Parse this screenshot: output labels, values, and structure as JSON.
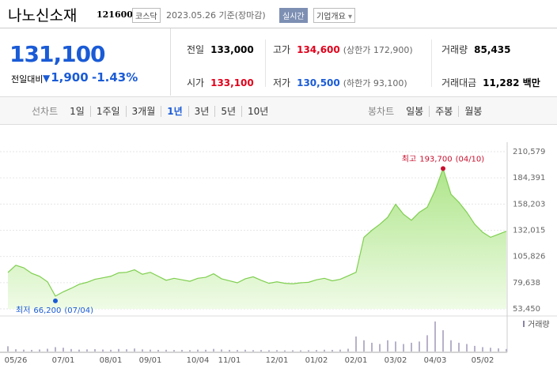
{
  "header": {
    "name": "나노신소재",
    "code": "121600",
    "market": "코스닥",
    "date": "2023.05.26 기준(장마감)",
    "status": "실시간",
    "button": "기업개요"
  },
  "quote": {
    "price": "131,100",
    "change_label": "전일대비",
    "change": "1,900",
    "change_pct": "-1.43%",
    "color": "#1a5bd6"
  },
  "stats": [
    [
      {
        "label": "전일",
        "value": "133,000"
      },
      {
        "label": "고가",
        "value": "134,600",
        "color": "#e0001b",
        "extra": "(상한가 172,900)"
      },
      {
        "label": "거래량",
        "value": "85,435"
      }
    ],
    [
      {
        "label": "시가",
        "value": "133,100",
        "color": "#e0001b"
      },
      {
        "label": "저가",
        "value": "130,500",
        "color": "#1a5bd6",
        "extra": "(하한가 93,100)"
      },
      {
        "label": "거래대금",
        "value": "11,282 백만"
      }
    ]
  ],
  "tabs": {
    "line_label": "선차트",
    "line_periods": [
      "1일",
      "1주일",
      "3개월",
      "1년",
      "3년",
      "5년",
      "10년"
    ],
    "selected": "1년",
    "candle_label": "봉차트",
    "candle_periods": [
      "일봉",
      "주봉",
      "월봉"
    ]
  },
  "chart_data": {
    "type": "area",
    "color": "#7fcf4f",
    "fill": "#c9f0ad",
    "categories": [
      null,
      "05/26",
      null,
      null,
      null,
      null,
      null,
      "07/01",
      null,
      null,
      null,
      null,
      null,
      "08/01",
      null,
      null,
      null,
      null,
      "09/01",
      null,
      null,
      null,
      null,
      null,
      "10/04",
      null,
      null,
      null,
      "11/01",
      null,
      null,
      null,
      null,
      null,
      "12/01",
      null,
      null,
      null,
      null,
      "01/02",
      null,
      null,
      null,
      null,
      "02/01",
      null,
      null,
      null,
      null,
      "03/02",
      null,
      null,
      null,
      null,
      "04/03",
      null,
      null,
      null,
      null,
      null,
      "05/02",
      null,
      null,
      null
    ],
    "values": [
      89800,
      97000,
      94500,
      89000,
      86000,
      80500,
      66200,
      70500,
      74000,
      78000,
      80000,
      83000,
      84500,
      86000,
      89500,
      90000,
      92500,
      88000,
      90000,
      86000,
      82000,
      84000,
      82500,
      81000,
      84000,
      85000,
      88500,
      83500,
      81500,
      79500,
      83500,
      85500,
      82000,
      79000,
      80500,
      79000,
      78500,
      79500,
      80000,
      82500,
      84000,
      81500,
      83000,
      86500,
      90000,
      125000,
      132000,
      138000,
      145000,
      158000,
      148000,
      142000,
      150000,
      155000,
      172000,
      193700,
      168000,
      160000,
      150000,
      138000,
      130000,
      125000,
      128000,
      131100
    ],
    "ylim": [
      53450,
      210579
    ],
    "yticks": [
      {
        "value": 53450,
        "label": "53,450"
      },
      {
        "value": 79638,
        "label": "79,638"
      },
      {
        "value": 105826,
        "label": "105,826"
      },
      {
        "value": 132015,
        "label": "132,015"
      },
      {
        "value": 158203,
        "label": "158,203"
      },
      {
        "value": 184391,
        "label": "184,391"
      },
      {
        "value": 210579,
        "label": "210,579"
      }
    ],
    "grid": true,
    "annotations": [
      {
        "label": "최고",
        "value": 193700,
        "value_label": "193,700",
        "date": "(04/10)",
        "color": "#c8102e"
      },
      {
        "label": "최저",
        "value": 66200,
        "value_label": "66,200",
        "date": "(07/04)",
        "color": "#1a5bd6"
      }
    ],
    "volume": {
      "name": "거래량",
      "color": "#b7b2c9",
      "values": [
        420000,
        180000,
        150000,
        130000,
        160000,
        220000,
        350000,
        300000,
        200000,
        150000,
        170000,
        190000,
        160000,
        140000,
        200000,
        180000,
        240000,
        170000,
        150000,
        130000,
        140000,
        120000,
        130000,
        110000,
        150000,
        140000,
        210000,
        160000,
        130000,
        120000,
        140000,
        110000,
        120000,
        100000,
        110000,
        90000,
        100000,
        95000,
        105000,
        120000,
        140000,
        130000,
        150000,
        220000,
        1200000,
        900000,
        700000,
        600000,
        900000,
        800000,
        600000,
        700000,
        800000,
        1300000,
        2400000,
        1700000,
        900000,
        700000,
        600000,
        450000,
        350000,
        300000,
        250000,
        200000
      ]
    }
  }
}
